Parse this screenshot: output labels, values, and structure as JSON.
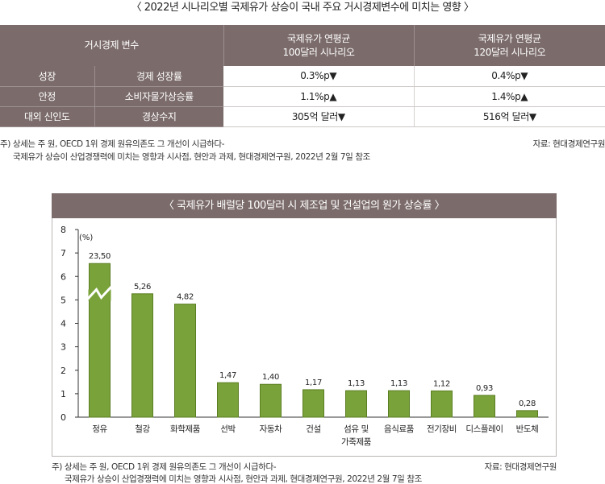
{
  "table": {
    "title": "〈 2022년 시나리오별 국제유가 상승이 국내 주요 거시경제변수에 미치는 영향 〉",
    "header": {
      "variable": "거시경제 변수",
      "col1_line1": "국제유가 연평균",
      "col1_line2": "100달러 시나리오",
      "col2_line1": "국제유가 연평균",
      "col2_line2": "120달러 시나리오"
    },
    "rows": [
      {
        "category": "성장",
        "variable": "경제 성장률",
        "v100": "0.3%p▼",
        "v120": "0.4%p▼"
      },
      {
        "category": "안정",
        "variable": "소비자물가상승률",
        "v100": "1.1%p▲",
        "v120": "1.4%p▲"
      },
      {
        "category": "대외 신인도",
        "variable": "경상수지",
        "v100": "305억 달러▼",
        "v120": "516억 달러▼"
      }
    ],
    "note_line1": "주) 상세는 주 원, OECD 1위 경제 원유의존도 그 개선이 시급하다-",
    "note_line2": "국제유가 상승이 산업경쟁력에 미치는 영향과 시사점, 현안과 과제, 현대경제연구원, 2022년 2월 7일 참조",
    "source": "자료: 현대경제연구원"
  },
  "chart": {
    "title": "〈 국제유가 배럴당 100달러 시 제조업 및 건설업의 원가 상승률 〉",
    "note_line1": "주) 상세는 주 원, OECD 1위 경제 원유의존도 그 개선이 시급하다-",
    "note_line2": "국제유가 상승이 산업경쟁력에 미치는 영향과 시사점, 현안과 과제, 현대경제연구원, 2022년 2월 7일 참조",
    "source": "자료: 현대경제연구원"
  },
  "colors": {
    "header_bg": "#7b6b6b",
    "bar_fill": "#7aa23a",
    "bar_edge": "#5a7d22"
  },
  "chart_data": {
    "type": "bar",
    "title": "〈 국제유가 배럴당 100달러 시 제조업 및 건설업의 원가 상승률 〉",
    "ylabel": "(%)",
    "ylim": [
      0,
      8
    ],
    "yticks": [
      0,
      1,
      2,
      3,
      4,
      5,
      6,
      7,
      8
    ],
    "grid": false,
    "axis_break_on": "정유",
    "categories": [
      "정유",
      "철강",
      "화학제품",
      "선박",
      "자동차",
      "건설",
      "섬유 및\n가죽제품",
      "음식료품",
      "전기장비",
      "디스플레이",
      "반도체"
    ],
    "values": [
      23.5,
      5.26,
      4.82,
      1.47,
      1.4,
      1.17,
      1.13,
      1.13,
      1.12,
      0.93,
      0.28
    ],
    "value_labels": [
      "23,50",
      "5,26",
      "4,82",
      "1,47",
      "1,40",
      "1,17",
      "1,13",
      "1,13",
      "1,12",
      "0,93",
      "0,28"
    ]
  }
}
